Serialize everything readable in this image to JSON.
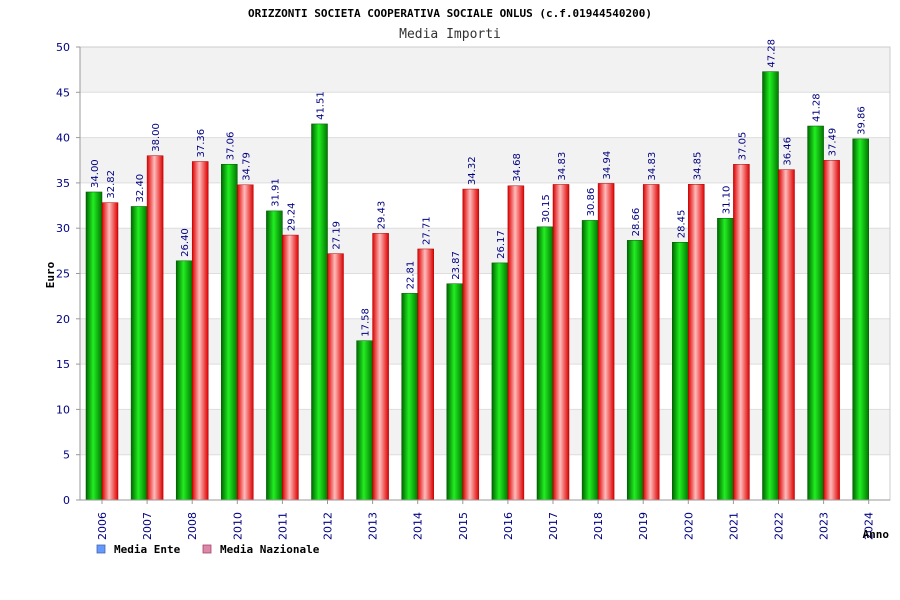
{
  "chart_data": {
    "type": "bar",
    "title": "ORIZZONTI SOCIETA COOPERATIVA SOCIALE ONLUS (c.f.01944540200)",
    "subtitle": "Media Importi",
    "xlabel": "Anno",
    "ylabel": "Euro",
    "ylim": [
      0,
      50
    ],
    "yticks": [
      0,
      5,
      10,
      15,
      20,
      25,
      30,
      35,
      40,
      45,
      50
    ],
    "grid": "horizontal-bands",
    "legend_position": "bottom-left",
    "categories": [
      "2006",
      "2007",
      "2008",
      "2010",
      "2011",
      "2012",
      "2013",
      "2014",
      "2015",
      "2016",
      "2017",
      "2018",
      "2019",
      "2020",
      "2021",
      "2022",
      "2023",
      "2024"
    ],
    "series": [
      {
        "name": "Media Ente",
        "color": "#00b000",
        "legend_color": "#6699ff",
        "values": [
          34.0,
          32.4,
          26.4,
          37.06,
          31.91,
          41.51,
          17.58,
          22.81,
          23.87,
          26.17,
          30.15,
          30.86,
          28.66,
          28.45,
          31.1,
          47.28,
          41.28,
          39.86
        ],
        "labels": [
          "34.00",
          "32.40",
          "26.40",
          "37.06",
          "31.91",
          "41.51",
          "17.58",
          "22.81",
          "23.87",
          "26.17",
          "30.15",
          "30.86",
          "28.66",
          "28.45",
          "31.10",
          "47.28",
          "41.28",
          "39.86"
        ]
      },
      {
        "name": "Media Nazionale",
        "color": "#ee1111",
        "legend_color": "#dd88aa",
        "values": [
          32.82,
          38.0,
          37.36,
          34.79,
          29.24,
          27.19,
          29.43,
          27.71,
          34.32,
          34.68,
          34.83,
          34.94,
          34.83,
          34.85,
          37.05,
          36.46,
          37.49,
          null
        ],
        "labels": [
          "32.82",
          "38.00",
          "37.36",
          "34.79",
          "29.24",
          "27.19",
          "29.43",
          "27.71",
          "34.32",
          "34.68",
          "34.83",
          "34.94",
          "34.83",
          "34.85",
          "37.05",
          "36.46",
          "37.49",
          null
        ]
      }
    ]
  }
}
